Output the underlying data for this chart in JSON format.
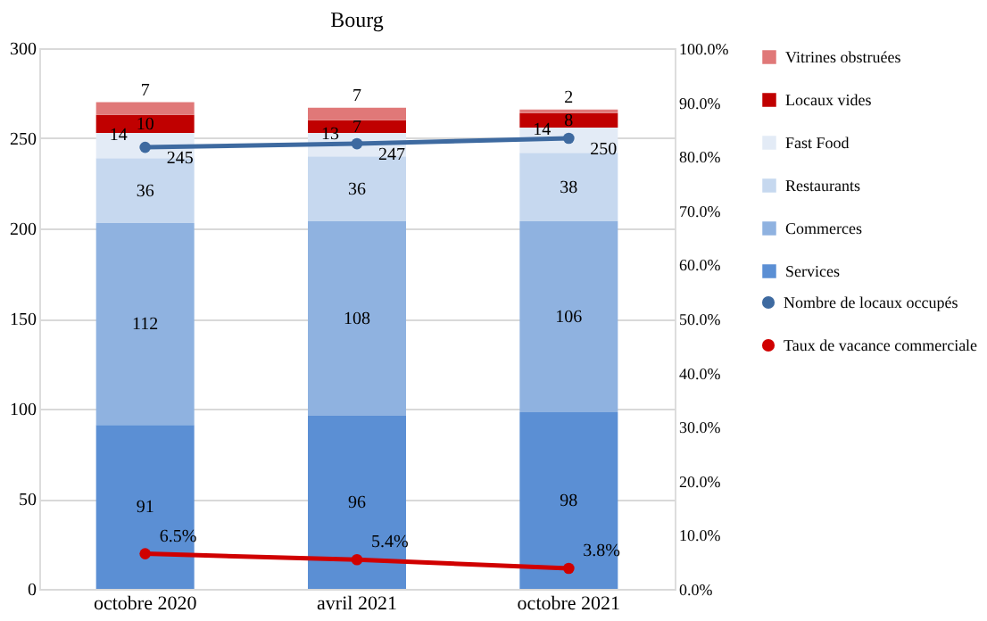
{
  "chart_data": {
    "type": "bar",
    "title": "Bourg",
    "stacked": true,
    "categories": [
      "octobre 2020",
      "avril 2021",
      "octobre 2021"
    ],
    "series": [
      {
        "name": "Services",
        "color": "#5b8fd4",
        "values": [
          91,
          96,
          98
        ]
      },
      {
        "name": "Commerces",
        "color": "#8fb2e0",
        "values": [
          112,
          108,
          106
        ]
      },
      {
        "name": "Restaurants",
        "color": "#c6d8ef",
        "values": [
          36,
          36,
          38
        ]
      },
      {
        "name": "Fast Food",
        "color": "#e3ebf6",
        "values": [
          14,
          13,
          14
        ]
      },
      {
        "name": "Locaux vides",
        "color": "#c00000",
        "values": [
          10,
          7,
          8
        ]
      },
      {
        "name": "Vitrines obstruées",
        "color": "#e07878",
        "values": [
          7,
          7,
          2
        ]
      },
      {
        "name": "Nombre de locaux occupés",
        "type": "line",
        "color": "#3e6aa0",
        "values": [
          245,
          247,
          250
        ],
        "marker": "circle"
      },
      {
        "name": "Taux de vacance commerciale",
        "type": "line",
        "axis": "y2",
        "color": "#d00000",
        "values": [
          6.5,
          5.4,
          3.8
        ],
        "marker": "circle",
        "value_labels": [
          "6.5%",
          "5.4%",
          "3.8%"
        ]
      }
    ],
    "data_labels": true,
    "ylim": [
      0,
      300
    ],
    "yticks": [
      0,
      50,
      100,
      150,
      200,
      250,
      300
    ],
    "y2lim": [
      0,
      100
    ],
    "y2ticks": [
      {
        "value": 0,
        "label": "0.0%"
      },
      {
        "value": 10,
        "label": "10.0%"
      },
      {
        "value": 20,
        "label": "20.0%"
      },
      {
        "value": 30,
        "label": "30.0%"
      },
      {
        "value": 40,
        "label": "40.0%"
      },
      {
        "value": 50,
        "label": "50.0%"
      },
      {
        "value": 60,
        "label": "60.0%"
      },
      {
        "value": 70,
        "label": "70.0%"
      },
      {
        "value": 80,
        "label": "80.0%"
      },
      {
        "value": 90,
        "label": "90.0%"
      },
      {
        "value": 100,
        "label": "100.0%"
      }
    ],
    "grid": "y",
    "legend": "right"
  }
}
